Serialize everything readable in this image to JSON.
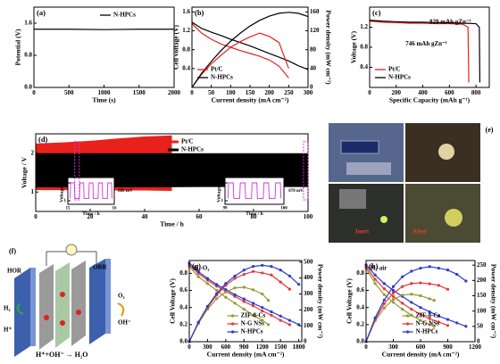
{
  "chart_data": [
    {
      "type": "line",
      "label": "(a)",
      "xlabel": "Time (s)",
      "ylabel": "Potential (V)",
      "xlim": [
        0,
        2000
      ],
      "xticks": [
        0,
        500,
        1000,
        1500,
        2000
      ],
      "ylim": [
        0,
        2.0
      ],
      "yticks": [
        {
          "value": 0,
          "label": "0.0"
        },
        0.8,
        1.6
      ],
      "legend": "upper center",
      "series": [
        {
          "name": "N-HPCs",
          "color": "#000000",
          "x": [
            0,
            500,
            1000,
            1500,
            2000
          ],
          "values": [
            1.45,
            1.45,
            1.44,
            1.45,
            1.45
          ]
        }
      ]
    },
    {
      "type": "line",
      "label": "(b)",
      "xlabel": "Current density (mA cm⁻²)",
      "ylabel": "Cell voltage (V)",
      "y2label": "Power density (mW cm⁻²)",
      "xlim": [
        0,
        300
      ],
      "xticks": [
        0,
        50,
        100,
        150,
        200,
        250,
        300
      ],
      "ylim": [
        0,
        1.7
      ],
      "yticks": [
        0.4,
        0.8,
        1.2,
        1.6
      ],
      "y2lim": [
        0,
        170
      ],
      "y2ticks": [
        0,
        40,
        80,
        120,
        160
      ],
      "legend": "lower left",
      "series": [
        {
          "name": "Pt/C",
          "color": "#e8211c",
          "x": [
            0,
            25,
            50,
            75,
            100,
            125,
            150,
            175,
            200,
            225,
            250
          ],
          "values": [
            1.35,
            1.15,
            1.02,
            0.92,
            0.85,
            0.78,
            0.72,
            0.66,
            0.58,
            0.45,
            0.2
          ]
        },
        {
          "name": "N-HPCs",
          "color": "#000000",
          "x": [
            0,
            25,
            50,
            75,
            100,
            125,
            150,
            175,
            200,
            225,
            250,
            275,
            300
          ],
          "values": [
            1.38,
            1.25,
            1.17,
            1.1,
            1.02,
            0.95,
            0.88,
            0.8,
            0.72,
            0.64,
            0.56,
            0.46,
            0.38
          ]
        },
        {
          "axis": "y2",
          "color": "#e8211c",
          "x": [
            0,
            25,
            50,
            75,
            100,
            125,
            150,
            175,
            200,
            225,
            250
          ],
          "values": [
            0,
            28,
            50,
            68,
            85,
            97,
            107,
            115,
            108,
            95,
            40
          ]
        },
        {
          "axis": "y2",
          "color": "#000000",
          "x": [
            0,
            25,
            50,
            75,
            100,
            125,
            150,
            175,
            200,
            225,
            250,
            275,
            300
          ],
          "values": [
            0,
            30,
            55,
            78,
            98,
            115,
            130,
            142,
            151,
            157,
            159,
            157,
            150
          ]
        }
      ]
    },
    {
      "type": "line",
      "label": "(c)",
      "xlabel": "Specific Capacity (mAh g⁻¹)",
      "ylabel": "Voltage (V)",
      "xlim": [
        0,
        900
      ],
      "xticks": [
        0,
        200,
        400,
        600,
        800
      ],
      "ylim": [
        0,
        1.6
      ],
      "yticks": [
        0.4,
        0.8,
        1.2
      ],
      "legend": "lower left",
      "annotations": [
        "829 mAh gZn⁻¹",
        "746 mAh gZn⁻¹"
      ],
      "series": [
        {
          "name": "Pt/C",
          "color": "#e8211c",
          "x": [
            0,
            100,
            200,
            300,
            400,
            500,
            600,
            700,
            740,
            746
          ],
          "values": [
            1.32,
            1.3,
            1.29,
            1.28,
            1.28,
            1.27,
            1.27,
            1.26,
            1.2,
            0.1
          ]
        },
        {
          "name": "N-HPCs",
          "color": "#000000",
          "x": [
            0,
            100,
            200,
            300,
            400,
            500,
            600,
            700,
            800,
            825,
            829
          ],
          "values": [
            1.34,
            1.32,
            1.31,
            1.3,
            1.3,
            1.29,
            1.29,
            1.28,
            1.27,
            1.2,
            0.1
          ]
        }
      ]
    },
    {
      "type": "range",
      "label": "(d)",
      "xlabel": "Time / h",
      "ylabel": "Voltage / V",
      "xlim": [
        0,
        100
      ],
      "xticks": [
        0,
        20,
        40,
        60,
        80,
        100
      ],
      "ylim": [
        0.5,
        2.5
      ],
      "yticks": [
        1,
        2
      ],
      "legend": "upper center",
      "series": [
        {
          "name": "Pt/C",
          "color": "#e8211c",
          "x": [
            0,
            10,
            20,
            30,
            40,
            50
          ],
          "values": [
            2.25,
            2.28,
            2.32,
            2.38,
            2.43,
            2.46
          ],
          "low": [
            1.05,
            1.05,
            1.05,
            1.04,
            1.04,
            1.03
          ]
        },
        {
          "name": "N-HPCs",
          "color": "#000000",
          "x": [
            0,
            20,
            40,
            60,
            80,
            100
          ],
          "values": [
            2.0,
            2.0,
            2.0,
            2.0,
            2.0,
            2.0
          ],
          "low": [
            1.12,
            1.12,
            1.12,
            1.13,
            1.13,
            1.13
          ]
        }
      ]
    },
    {
      "type": "line",
      "xlabel": "Time / h",
      "ylabel": "Voltage / V",
      "xlim": [
        15,
        16
      ],
      "xticks": [
        15,
        16
      ],
      "ylim": [
        0.8,
        2.3
      ],
      "yticks": [
        1,
        2
      ],
      "annotations": [
        "880 mV"
      ],
      "series": [
        {
          "color": "#d633d6",
          "x": [
            15.05,
            15.06,
            15.14,
            15.15,
            15.25,
            15.26,
            15.34,
            15.35,
            15.45,
            15.46,
            15.54,
            15.55,
            15.65,
            15.66,
            15.74,
            15.75,
            15.85,
            15.86,
            15.94,
            15.95
          ],
          "values": [
            1.12,
            2.0,
            2.0,
            1.12,
            1.12,
            2.0,
            2.0,
            1.12,
            1.12,
            2.0,
            2.0,
            1.12,
            1.12,
            2.0,
            2.0,
            1.12,
            1.12,
            2.0,
            2.0,
            1.12
          ]
        }
      ]
    },
    {
      "type": "line",
      "xlabel": "Time / h",
      "ylabel": "Voltage / V",
      "xlim": [
        99,
        100
      ],
      "xticks": [
        99,
        100
      ],
      "ylim": [
        0.8,
        2.3
      ],
      "yticks": [
        1,
        2
      ],
      "annotations": [
        "870 mV"
      ],
      "series": [
        {
          "color": "#d633d6",
          "x": [
            99.05,
            99.06,
            99.14,
            99.15,
            99.25,
            99.26,
            99.34,
            99.35,
            99.45,
            99.46,
            99.54,
            99.55,
            99.65,
            99.66,
            99.74,
            99.75,
            99.85,
            99.86,
            99.94,
            99.95
          ],
          "values": [
            1.13,
            2.0,
            2.0,
            1.13,
            1.13,
            2.0,
            2.0,
            1.13,
            1.13,
            2.0,
            2.0,
            1.13,
            1.13,
            2.0,
            2.0,
            1.13,
            1.13,
            2.0,
            2.0,
            1.13
          ]
        }
      ]
    },
    {
      "type": "line",
      "label": "(g)",
      "xlabel": "Current density (mA cm⁻²)",
      "ylabel": "Cell Voltage (V)",
      "y2label": "Power density (mW cm⁻²)",
      "xlim": [
        0,
        1850
      ],
      "xticks": [
        0,
        300,
        600,
        900,
        1200,
        1500,
        1800
      ],
      "ylim": [
        0,
        0.95
      ],
      "yticks": [
        {
          "value": 0,
          "label": "0.0"
        },
        0.2,
        0.4,
        0.6,
        0.8
      ],
      "y2lim": [
        0,
        510
      ],
      "y2ticks": [
        0,
        100,
        200,
        300,
        400,
        500
      ],
      "legend": "lower center",
      "annotations": [
        "H₂-O₂"
      ],
      "series": [
        {
          "name": "ZIF-8-Cs",
          "color": "#999933",
          "marker": "circle",
          "x": [
            0,
            150,
            300,
            450,
            600,
            750,
            900,
            1050,
            1200,
            1300
          ],
          "values": [
            0.88,
            0.76,
            0.68,
            0.6,
            0.52,
            0.45,
            0.38,
            0.31,
            0.25,
            0.2
          ]
        },
        {
          "name": "N-G NSs",
          "color": "#e53935",
          "marker": "circle",
          "x": [
            0,
            150,
            300,
            450,
            600,
            750,
            900,
            1050,
            1200,
            1350,
            1500,
            1650
          ],
          "values": [
            0.9,
            0.8,
            0.72,
            0.65,
            0.59,
            0.53,
            0.47,
            0.42,
            0.36,
            0.31,
            0.25,
            0.2
          ]
        },
        {
          "name": "N-HPCs",
          "color": "#2b3bd4",
          "marker": "circle",
          "x": [
            0,
            150,
            300,
            450,
            600,
            750,
            900,
            1050,
            1200,
            1350,
            1500,
            1650,
            1800
          ],
          "values": [
            0.92,
            0.82,
            0.74,
            0.67,
            0.61,
            0.55,
            0.5,
            0.45,
            0.4,
            0.35,
            0.3,
            0.25,
            0.2
          ]
        },
        {
          "axis": "y2",
          "color": "#999933",
          "marker": "circle",
          "x": [
            0,
            150,
            300,
            450,
            600,
            750,
            900,
            1050,
            1200,
            1300
          ],
          "values": [
            0,
            114,
            204,
            270,
            312,
            338,
            342,
            326,
            300,
            260
          ]
        },
        {
          "axis": "y2",
          "color": "#e53935",
          "marker": "circle",
          "x": [
            0,
            150,
            300,
            450,
            600,
            750,
            900,
            1050,
            1200,
            1350,
            1500,
            1650
          ],
          "values": [
            0,
            120,
            216,
            293,
            354,
            398,
            423,
            441,
            432,
            419,
            375,
            330
          ]
        },
        {
          "axis": "y2",
          "color": "#2b3bd4",
          "marker": "circle",
          "x": [
            0,
            150,
            300,
            450,
            600,
            750,
            900,
            1050,
            1200,
            1350,
            1500,
            1650,
            1800
          ],
          "values": [
            0,
            123,
            222,
            302,
            366,
            413,
            450,
            473,
            480,
            473,
            450,
            413,
            360
          ]
        }
      ]
    },
    {
      "type": "line",
      "label": "(h)",
      "xlabel": "Current density (mA cm⁻²)",
      "ylabel": "Cell Voltage (V)",
      "y2label": "Power density (mW cm⁻²)",
      "xlim": [
        0,
        1200
      ],
      "xticks": [
        0,
        300,
        600,
        900,
        1200
      ],
      "ylim": [
        0,
        0.95
      ],
      "yticks": [
        {
          "value": 0,
          "label": "0.0"
        },
        0.2,
        0.4,
        0.6,
        0.8
      ],
      "y2lim": [
        0,
        265
      ],
      "y2ticks": [
        0,
        50,
        100,
        150,
        200,
        250
      ],
      "legend": "lower center",
      "annotations": [
        "H₂-air"
      ],
      "series": [
        {
          "name": "ZIF-8-Cs",
          "color": "#999933",
          "marker": "circle",
          "x": [
            0,
            100,
            200,
            300,
            400,
            500,
            600,
            700,
            750
          ],
          "values": [
            0.86,
            0.68,
            0.55,
            0.46,
            0.38,
            0.31,
            0.25,
            0.2,
            0.18
          ]
        },
        {
          "name": "N-G NSs",
          "color": "#e53935",
          "marker": "circle",
          "x": [
            0,
            100,
            200,
            300,
            400,
            500,
            600,
            700,
            800,
            900
          ],
          "values": [
            0.88,
            0.73,
            0.62,
            0.53,
            0.45,
            0.38,
            0.32,
            0.27,
            0.23,
            0.19
          ]
        },
        {
          "name": "N-HPCs",
          "color": "#2b3bd4",
          "marker": "circle",
          "x": [
            0,
            100,
            200,
            300,
            400,
            500,
            600,
            700,
            800,
            900,
            1000,
            1100
          ],
          "values": [
            0.9,
            0.78,
            0.68,
            0.6,
            0.53,
            0.46,
            0.4,
            0.35,
            0.3,
            0.26,
            0.22,
            0.18
          ]
        },
        {
          "axis": "y2",
          "color": "#999933",
          "marker": "circle",
          "x": [
            0,
            100,
            200,
            300,
            400,
            500,
            600,
            700,
            750
          ],
          "values": [
            0,
            68,
            110,
            138,
            152,
            155,
            150,
            140,
            135
          ]
        },
        {
          "axis": "y2",
          "color": "#e53935",
          "marker": "circle",
          "x": [
            0,
            100,
            200,
            300,
            400,
            500,
            600,
            700,
            800,
            900
          ],
          "values": [
            0,
            73,
            124,
            159,
            180,
            190,
            192,
            189,
            184,
            171
          ]
        },
        {
          "axis": "y2",
          "color": "#2b3bd4",
          "marker": "circle",
          "x": [
            0,
            100,
            200,
            300,
            400,
            500,
            600,
            700,
            800,
            900,
            1000,
            1100
          ],
          "values": [
            0,
            78,
            136,
            180,
            212,
            230,
            240,
            245,
            240,
            234,
            220,
            198
          ]
        }
      ]
    }
  ],
  "photo_panel": {
    "label": "(e)",
    "captions": [
      "Inert",
      "After"
    ]
  },
  "diagram_panel": {
    "label": "(f)",
    "anode": "HOR",
    "cathode": "ORR",
    "fuel": "H₂",
    "proton": "H⁺",
    "oxidant": "O₂",
    "hydroxide": "OH⁻",
    "reaction": "H⁺+OH⁻ → H₂O"
  }
}
